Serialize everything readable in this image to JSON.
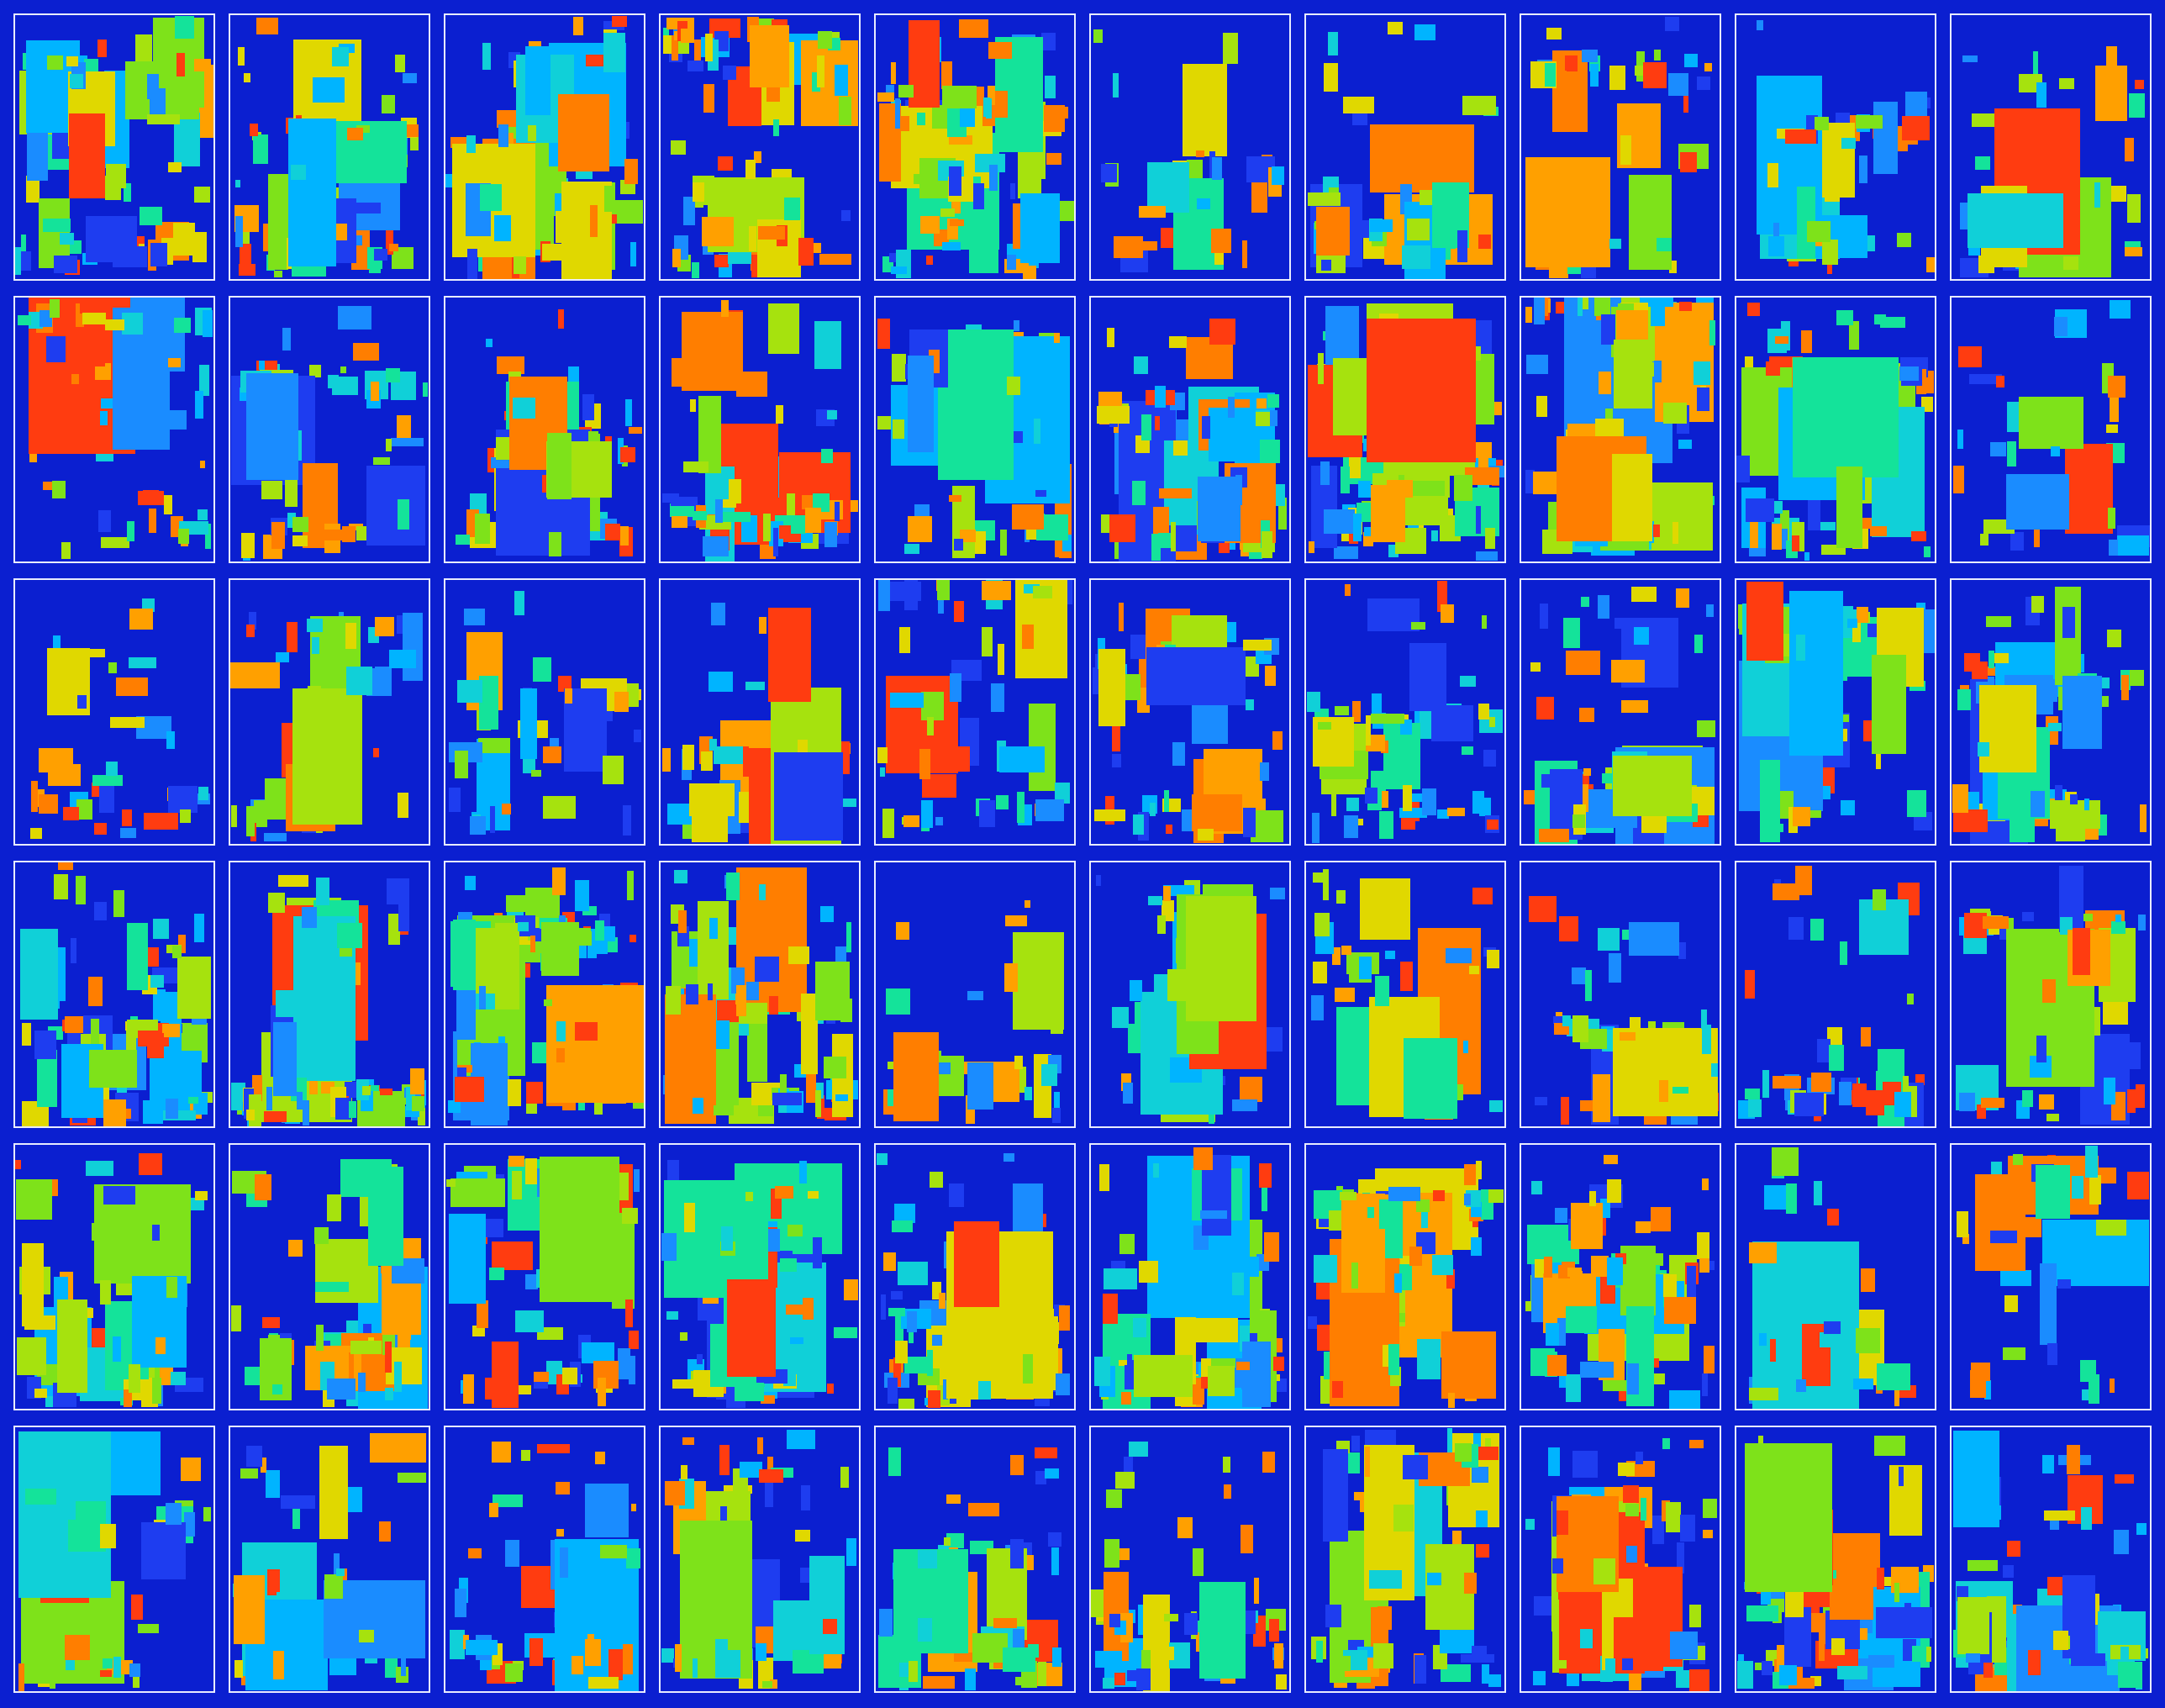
{
  "grid": {
    "rows": 6,
    "cols": 10
  },
  "colors": {
    "background": "#0b1fd0",
    "panel_border": "#e8ecff",
    "palette": [
      "#1e3df0",
      "#1a8cff",
      "#00b4ff",
      "#10d0d8",
      "#14e39a",
      "#7ee21a",
      "#a6e20e",
      "#e0d800",
      "#ffa000",
      "#ff7e00",
      "#ff3c10"
    ]
  }
}
